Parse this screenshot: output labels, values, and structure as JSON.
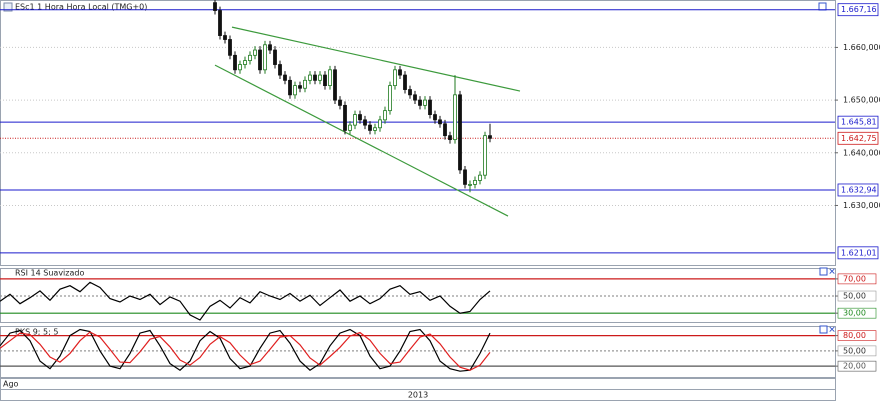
{
  "chart_data": [
    {
      "type": "candlestick",
      "title": "ESc1 1 Hora Hora Local (TMG+0)",
      "x": [
        0,
        1,
        2,
        3,
        4,
        5,
        6,
        7,
        8,
        9,
        10,
        11,
        12,
        13,
        14,
        15,
        16,
        17,
        18,
        19,
        20,
        21,
        22,
        23,
        24,
        25,
        26,
        27,
        28,
        29,
        30,
        31,
        32,
        33,
        34,
        35,
        36,
        37,
        38,
        39,
        40,
        41,
        42,
        43,
        44,
        45,
        46,
        47,
        48,
        49,
        50,
        51,
        52,
        53,
        54,
        55
      ],
      "open": [
        1668.5,
        1667,
        1662.25,
        1661.5,
        1658.5,
        1655.75,
        1656.75,
        1657.5,
        1658.5,
        1659.5,
        1655.75,
        1660.5,
        1659.5,
        1656.75,
        1654.75,
        1653.75,
        1651,
        1652.75,
        1652.25,
        1653.75,
        1654.75,
        1653.75,
        1654.75,
        1652.75,
        1655.75,
        1650,
        1649,
        1644.25,
        1645.25,
        1647.25,
        1646.25,
        1645.25,
        1644.25,
        1644.75,
        1646.25,
        1648,
        1652.75,
        1655.75,
        1654.75,
        1652,
        1651,
        1650,
        1649,
        1650,
        1647.25,
        1646.25,
        1645.5,
        1643.25,
        1642.5,
        1651,
        1636.75,
        1634,
        1634,
        1634.75,
        1635.75,
        1643.25
      ],
      "high": [
        1669.25,
        1667.75,
        1663,
        1662.25,
        1659.25,
        1657.5,
        1658.25,
        1659.25,
        1660.25,
        1660.25,
        1661.25,
        1661.25,
        1660.25,
        1657.5,
        1655.5,
        1654.5,
        1653.5,
        1653.5,
        1654.5,
        1655.5,
        1655.5,
        1655.5,
        1655.5,
        1656.5,
        1656.5,
        1650.75,
        1649.75,
        1646,
        1648,
        1648,
        1647,
        1646,
        1645.5,
        1647,
        1648.75,
        1653.5,
        1656.5,
        1656.5,
        1655.5,
        1652.75,
        1651.75,
        1650.75,
        1650.75,
        1650.75,
        1648,
        1647,
        1646.25,
        1644,
        1654.75,
        1651.75,
        1637.5,
        1634.75,
        1635.5,
        1636.5,
        1644,
        1645.5
      ],
      "low": [
        1666.25,
        1661.5,
        1660.75,
        1657.75,
        1655,
        1655,
        1656,
        1656.75,
        1657.75,
        1655,
        1655,
        1658.75,
        1656,
        1654,
        1653,
        1650.25,
        1650.25,
        1651.5,
        1651.5,
        1653,
        1653,
        1653,
        1652,
        1652,
        1649.25,
        1648.25,
        1643.5,
        1643.5,
        1644.5,
        1645.5,
        1644.5,
        1643.5,
        1643.5,
        1644,
        1645.5,
        1647.25,
        1652,
        1654,
        1651.25,
        1650.25,
        1649.25,
        1648.25,
        1648.25,
        1646.5,
        1645.5,
        1644.75,
        1642.5,
        1641.75,
        1641.75,
        1636,
        1633.25,
        1632.5,
        1633.25,
        1634,
        1635,
        1642
      ],
      "close": [
        1667,
        1662.25,
        1661.5,
        1658.5,
        1655.75,
        1656.75,
        1657.5,
        1658.5,
        1659.5,
        1655.75,
        1660.5,
        1659.5,
        1656.75,
        1654.75,
        1653.75,
        1651,
        1652.75,
        1652.25,
        1653.75,
        1654.75,
        1653.75,
        1654.75,
        1652.75,
        1655.75,
        1650,
        1649,
        1644.25,
        1645.25,
        1647.25,
        1646.25,
        1645.25,
        1644.25,
        1644.75,
        1646.25,
        1648,
        1652.75,
        1655.75,
        1654.75,
        1652,
        1651,
        1650,
        1649,
        1650,
        1647.25,
        1646.25,
        1645.5,
        1643.25,
        1642.5,
        1651,
        1636.75,
        1634,
        1634,
        1634.75,
        1635.75,
        1643.25,
        1642.75
      ],
      "up_color": "#1f7a1f",
      "down_color": "#111111",
      "xlim": [
        -43,
        124
      ],
      "ylim": [
        1618.7,
        1669
      ],
      "yticks": [
        {
          "value": 1660,
          "label": "1.660,000"
        },
        {
          "value": 1650,
          "label": "1.650,000"
        },
        {
          "value": 1640,
          "label": "1.640,000"
        },
        {
          "value": 1630,
          "label": "1.630,000"
        }
      ],
      "grid": true,
      "levels": [
        {
          "value": 1667.16,
          "label": "1.667,16",
          "color": "#1a1acc",
          "style": "solid"
        },
        {
          "value": 1645.81,
          "label": "1.645,81",
          "color": "#1a1acc",
          "style": "solid"
        },
        {
          "value": 1642.75,
          "label": "1.642,75",
          "color": "#cc1a1a",
          "style": "dotted"
        },
        {
          "value": 1632.94,
          "label": "1.632,94",
          "color": "#1a1acc",
          "style": "solid"
        },
        {
          "value": 1621.01,
          "label": "1.621,01",
          "color": "#1a1acc",
          "style": "solid"
        }
      ],
      "trendlines": [
        {
          "x": [
            3.4,
            61
          ],
          "y": [
            1663.85,
            1651.71
          ],
          "color": "#3c9a3c"
        },
        {
          "x": [
            0,
            58.6
          ],
          "y": [
            1656.64,
            1627.99
          ],
          "color": "#3c9a3c"
        }
      ]
    },
    {
      "type": "line",
      "title": "RSI 14 Suavizado",
      "x": [
        -43,
        -41,
        -39,
        -37,
        -35,
        -33,
        -31,
        -29,
        -27,
        -25,
        -23,
        -21,
        -19,
        -17,
        -15,
        -13,
        -11,
        -9,
        -7,
        -5,
        -3,
        -1,
        1,
        3,
        5,
        7,
        9,
        11,
        13,
        15,
        17,
        19,
        21,
        23,
        25,
        27,
        29,
        31,
        33,
        35,
        37,
        39,
        41,
        43,
        45,
        47,
        49,
        51,
        53,
        55
      ],
      "series": [
        {
          "color": "#000000",
          "values": [
            44,
            52,
            41,
            48,
            56,
            45,
            58,
            62,
            55,
            66,
            60,
            47,
            43,
            50,
            46,
            52,
            40,
            49,
            44,
            28,
            22,
            38,
            45,
            36,
            48,
            42,
            55,
            50,
            46,
            53,
            44,
            51,
            39,
            48,
            57,
            44,
            50,
            41,
            47,
            58,
            62,
            52,
            55,
            45,
            50,
            38,
            30,
            32,
            46,
            56
          ]
        }
      ],
      "xlim": [
        -43,
        124
      ],
      "ylim": [
        19.7,
        82.7
      ],
      "yticks": [
        {
          "value": 70,
          "label": "70,00",
          "color": "#cc1a1a"
        },
        {
          "value": 50,
          "label": "50,00",
          "color": "#999999"
        },
        {
          "value": 30,
          "label": "30,00",
          "color": "#1f8a1f"
        }
      ]
    },
    {
      "type": "line",
      "title": "PKS 9; 5; 5",
      "x": [
        -43,
        -41,
        -39,
        -37,
        -35,
        -33,
        -31,
        -29,
        -27,
        -25,
        -23,
        -21,
        -19,
        -17,
        -15,
        -13,
        -11,
        -9,
        -7,
        -5,
        -3,
        -1,
        1,
        3,
        5,
        7,
        9,
        11,
        13,
        15,
        17,
        19,
        21,
        23,
        25,
        27,
        29,
        31,
        33,
        35,
        37,
        39,
        41,
        43,
        45,
        47,
        49,
        51,
        53,
        55
      ],
      "series": [
        {
          "color": "#000000",
          "values": [
            60,
            85,
            90,
            70,
            30,
            15,
            40,
            80,
            92,
            88,
            50,
            20,
            15,
            45,
            85,
            90,
            60,
            25,
            12,
            30,
            70,
            88,
            75,
            35,
            15,
            20,
            55,
            85,
            90,
            65,
            30,
            12,
            25,
            60,
            85,
            92,
            80,
            40,
            15,
            20,
            50,
            88,
            92,
            70,
            30,
            15,
            10,
            12,
            45,
            85
          ]
        },
        {
          "color": "#e02020",
          "values": [
            55,
            70,
            85,
            82,
            63,
            38,
            28,
            45,
            70,
            87,
            77,
            53,
            28,
            27,
            48,
            73,
            78,
            58,
            32,
            22,
            37,
            63,
            78,
            66,
            42,
            23,
            30,
            53,
            77,
            80,
            62,
            36,
            22,
            39,
            57,
            79,
            86,
            71,
            45,
            25,
            28,
            53,
            77,
            83,
            64,
            38,
            18,
            12,
            22,
            47
          ]
        }
      ],
      "xlim": [
        -43,
        124
      ],
      "ylim": [
        -3.3,
        98.9
      ],
      "yticks": [
        {
          "value": 80,
          "label": "80,00",
          "color": "#cc1a1a"
        },
        {
          "value": 50,
          "label": "50,00",
          "color": "#999999"
        },
        {
          "value": 20,
          "label": "20,00",
          "color": "#555555"
        }
      ]
    }
  ],
  "time_axis": [
    "Ago",
    "2013"
  ]
}
